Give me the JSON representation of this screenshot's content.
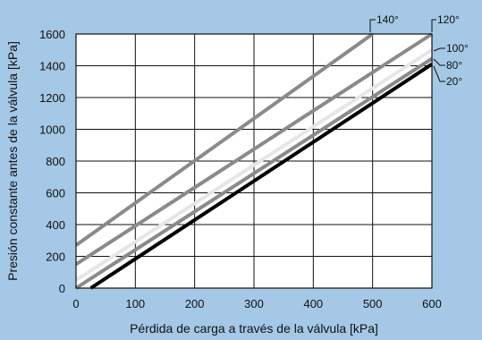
{
  "chart_data": {
    "type": "line",
    "xlabel": "Pérdida de carga a través de la válvula [kPa]",
    "ylabel": "Presión constante antes de la válvula [kPa]",
    "xlim": [
      0,
      600
    ],
    "ylim": [
      0,
      1600
    ],
    "x_ticks": [
      "0",
      "100",
      "200",
      "300",
      "400",
      "500",
      "600"
    ],
    "y_ticks": [
      "0",
      "200",
      "400",
      "600",
      "800",
      "1000",
      "1200",
      "1400",
      "1600"
    ],
    "grid": true,
    "series": [
      {
        "name": "140°",
        "color": "#8a8a8a",
        "x": [
          0,
          500
        ],
        "y": [
          270,
          1600
        ]
      },
      {
        "name": "120°",
        "color": "#8a8a8a",
        "x": [
          0,
          600
        ],
        "y": [
          150,
          1600
        ]
      },
      {
        "name": "100°",
        "color": "#e6e6e6",
        "x": [
          0,
          600
        ],
        "y": [
          50,
          1500
        ]
      },
      {
        "name": "80°",
        "color": "#8a8a8a",
        "x": [
          0,
          600
        ],
        "y": [
          0,
          1445
        ]
      },
      {
        "name": "20°",
        "color": "#000000",
        "x": [
          25,
          600
        ],
        "y": [
          0,
          1410
        ]
      }
    ]
  }
}
